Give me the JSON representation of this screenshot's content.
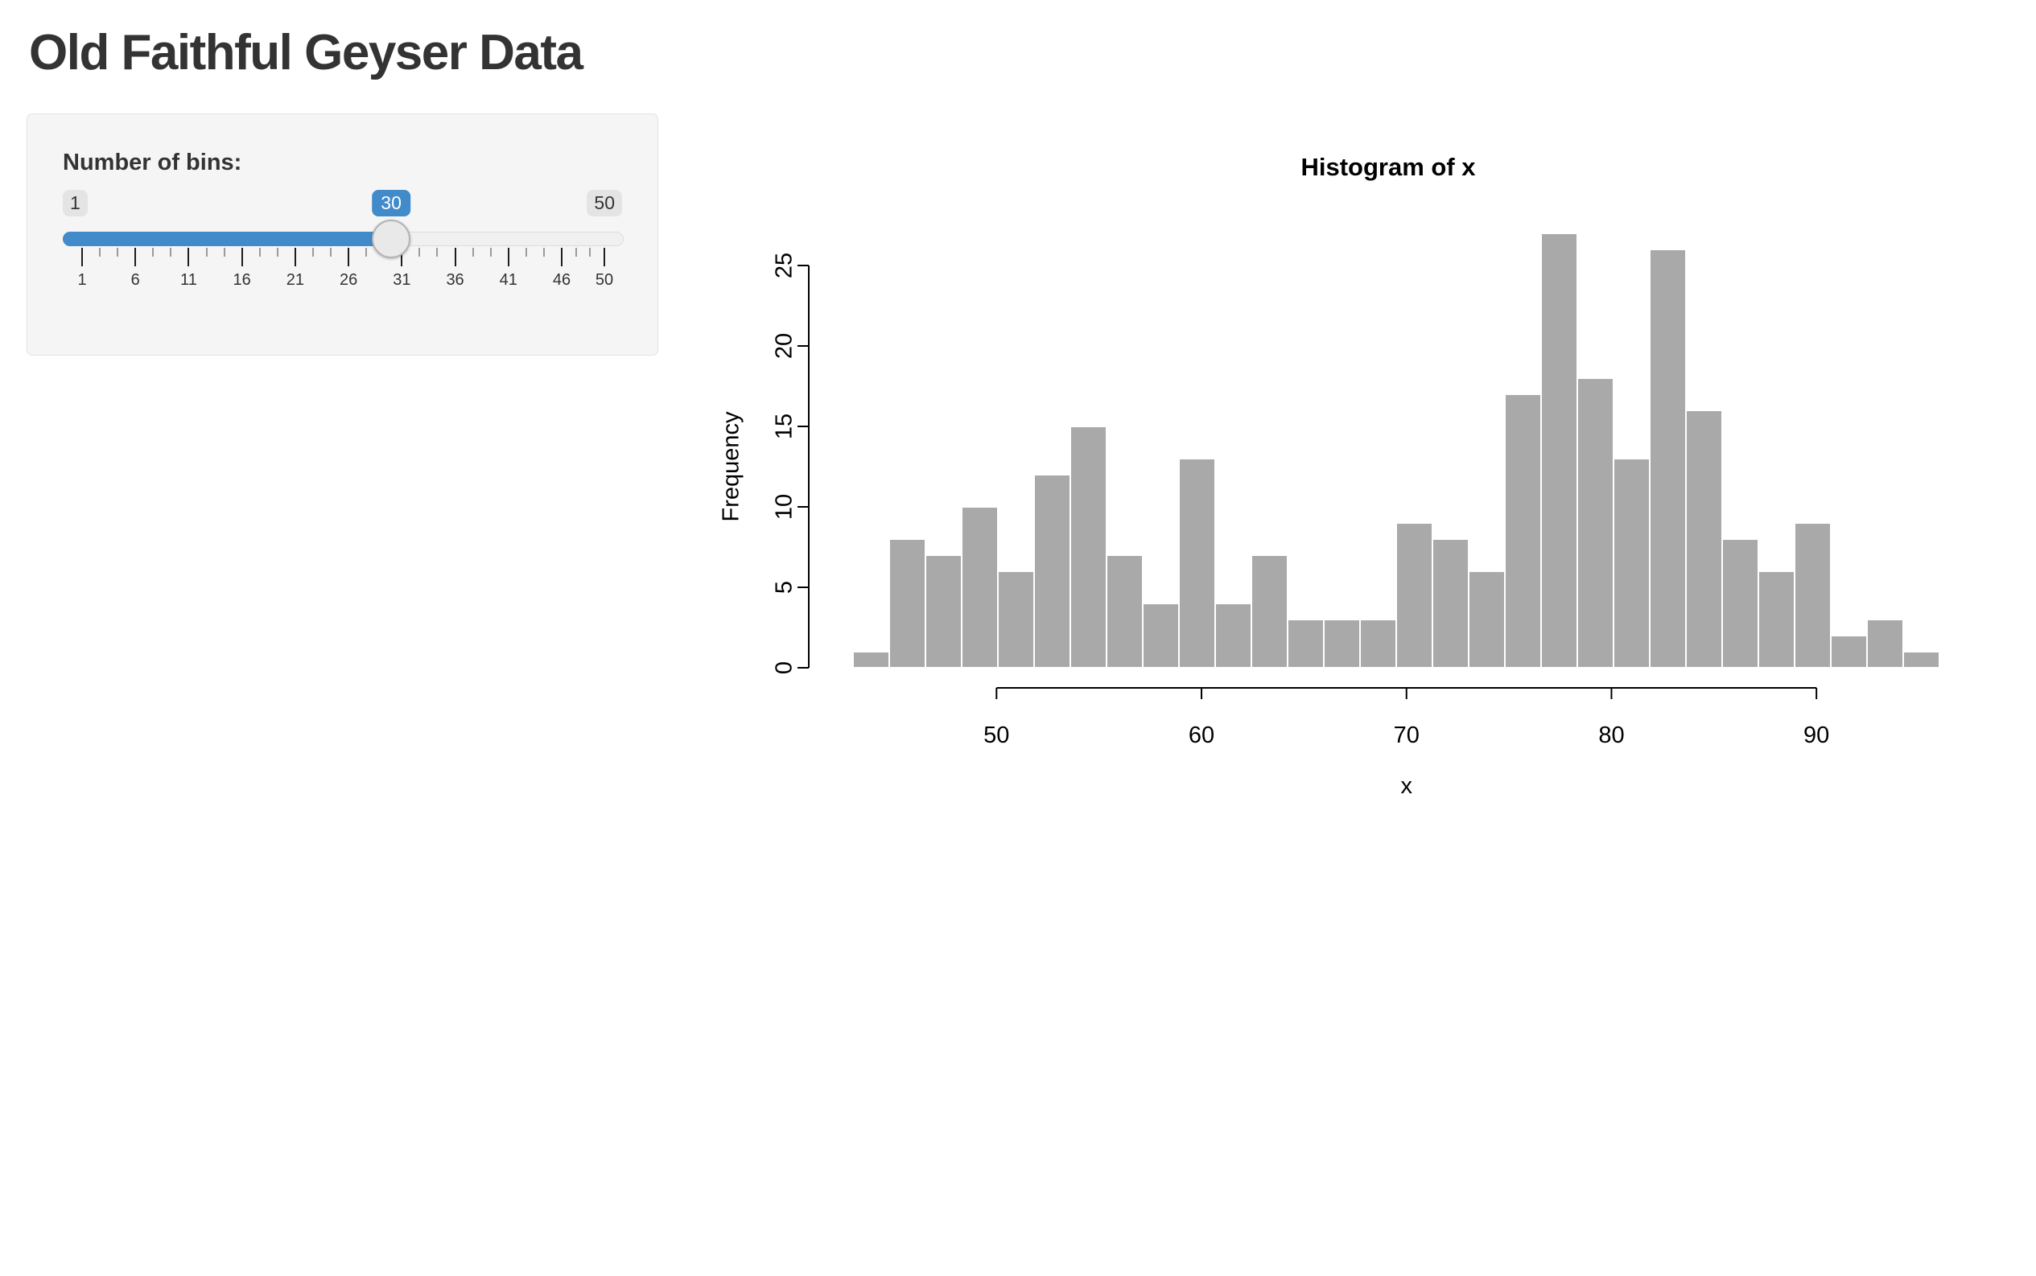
{
  "header": {
    "title": "Old Faithful Geyser Data"
  },
  "sidebar": {
    "slider": {
      "label": "Number of bins:",
      "min": 1,
      "max": 50,
      "value": 30,
      "min_label": "1",
      "max_label": "50",
      "value_label": "30",
      "major_ticks": [
        1,
        6,
        11,
        16,
        21,
        26,
        31,
        36,
        41,
        46,
        50
      ]
    }
  },
  "colors": {
    "accent": "#428bca",
    "panel_bg": "#f5f5f5",
    "panel_border": "#e3e3e3",
    "badge_bg": "#e4e4e4",
    "handle_fill": "#e9e9e9",
    "handle_border": "#b4b4b4",
    "text": "#333333"
  },
  "chart_data": {
    "type": "bar",
    "title": "Histogram of x",
    "xlabel": "x",
    "ylabel": "Frequency",
    "bin_start": 43,
    "bin_end": 96,
    "bin_count": 30,
    "frequencies": [
      1,
      8,
      7,
      10,
      6,
      12,
      15,
      7,
      4,
      13,
      4,
      7,
      3,
      3,
      3,
      9,
      8,
      6,
      17,
      27,
      18,
      13,
      26,
      16,
      8,
      6,
      9,
      2,
      3,
      1
    ],
    "x_ticks": [
      50,
      60,
      70,
      80,
      90
    ],
    "y_ticks": [
      0,
      5,
      10,
      15,
      20,
      25
    ],
    "ylim": [
      0,
      27
    ],
    "grid": false,
    "legend": "none",
    "bar_color": "#A9A9A9",
    "bar_border_color": "#FFFFFF",
    "axis_color": "#000000"
  }
}
